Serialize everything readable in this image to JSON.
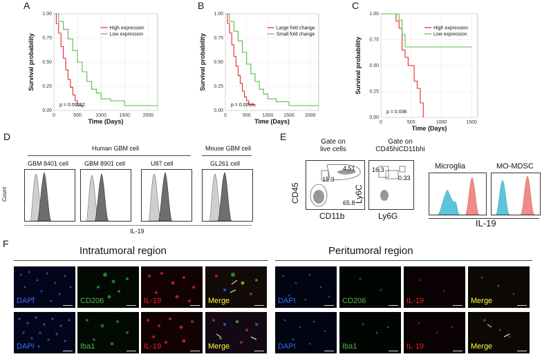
{
  "panels": {
    "A": {
      "letter": "A",
      "ylabel": "Survival probability",
      "xlabel": "Time (Days)",
      "pvalue": "p = 0.00062",
      "legend": [
        "High expression",
        "Low expression"
      ],
      "yticks": [
        "0.00",
        "0.25",
        "0.50",
        "0.75",
        "1.00"
      ],
      "xticks": [
        "0",
        "500",
        "1000",
        "1500",
        "2000"
      ]
    },
    "B": {
      "letter": "B",
      "ylabel": "Survival probability",
      "xlabel": "Time (Days)",
      "pvalue": "p = 0.0018",
      "legend": [
        "Large fold change",
        "Small fold change"
      ],
      "yticks": [
        "0.00",
        "0.25",
        "0.50",
        "0.75",
        "1.00"
      ],
      "xticks": [
        "0",
        "500",
        "1000",
        "1500",
        "2000"
      ]
    },
    "C": {
      "letter": "C",
      "ylabel": "Survival probability",
      "xlabel": "Time (Days)",
      "pvalue": "p = 0.036",
      "legend": [
        "High expression",
        "Low expression"
      ],
      "yticks": [
        "0.00",
        "0.25",
        "0.50",
        "0.75",
        "1.00"
      ],
      "xticks": [
        "0",
        "500",
        "1000",
        "1500"
      ]
    },
    "D": {
      "letter": "D",
      "group_human": "Human GBM cell",
      "group_mouse": "Mouse GBM cell",
      "cells": [
        "GBM 8401 cell",
        "GBM 8901 cell",
        "U87 cell",
        "GL261 cell"
      ],
      "ylabel": "Count",
      "xlabel": "IL-19"
    },
    "E": {
      "letter": "E",
      "gate1_line1": "Gate on",
      "gate1_line2": "live cells",
      "gate2_line1": "Gate on",
      "gate2_line2": "CD45hiCD11bhi",
      "plot1": {
        "ylabel": "CD45",
        "xlabel": "CD11b",
        "values": [
          "15.3",
          "4.51",
          "65.8"
        ]
      },
      "plot2": {
        "ylabel": "Ly6C",
        "xlabel": "Ly6G",
        "values": [
          "16.3",
          "0.33"
        ]
      },
      "hist_titles": [
        "Microglia",
        "MO-MDSC"
      ],
      "hist_xlabel": "IL-19"
    },
    "F": {
      "letter": "F",
      "intra_title": "Intratumoral region",
      "peri_title": "Peritumoral region",
      "row1": [
        "DAPI",
        "CD206",
        "IL-19",
        "Merge"
      ],
      "row2": [
        "DAPI",
        "Iba1",
        "IL-19",
        "Merge"
      ]
    }
  },
  "colors": {
    "red": "#e8242b",
    "green": "#56b847",
    "blue": "#5bc5da",
    "salmon": "#ef8b86",
    "dapi": "#3b6cff",
    "merge": "#ffff33"
  },
  "chart_data": [
    {
      "type": "line",
      "panel": "A",
      "xlabel": "Time (Days)",
      "ylabel": "Survival probability",
      "xlim": [
        0,
        2200
      ],
      "ylim": [
        0,
        1
      ],
      "series": [
        {
          "name": "High expression",
          "x": [
            0,
            50,
            100,
            150,
            200,
            250,
            300,
            350,
            400,
            450,
            500,
            600
          ],
          "y": [
            1.0,
            0.9,
            0.8,
            0.66,
            0.54,
            0.42,
            0.32,
            0.24,
            0.16,
            0.1,
            0.05,
            0.03
          ]
        },
        {
          "name": "Low expression",
          "x": [
            0,
            100,
            200,
            300,
            400,
            500,
            600,
            700,
            800,
            900,
            1000,
            1200,
            1500,
            2200
          ],
          "y": [
            1.0,
            0.92,
            0.84,
            0.74,
            0.62,
            0.5,
            0.4,
            0.3,
            0.22,
            0.18,
            0.12,
            0.1,
            0.05,
            0.05
          ]
        }
      ]
    },
    {
      "type": "line",
      "panel": "B",
      "xlabel": "Time (Days)",
      "ylabel": "Survival probability",
      "xlim": [
        0,
        2200
      ],
      "ylim": [
        0,
        1
      ],
      "series": [
        {
          "name": "Large fold change",
          "x": [
            0,
            50,
            100,
            150,
            200,
            250,
            300,
            350,
            400,
            450,
            500,
            550,
            700
          ],
          "y": [
            1.0,
            0.9,
            0.8,
            0.68,
            0.56,
            0.46,
            0.36,
            0.28,
            0.2,
            0.14,
            0.1,
            0.06,
            0.04
          ]
        },
        {
          "name": "Small fold change",
          "x": [
            0,
            100,
            200,
            300,
            400,
            500,
            600,
            700,
            800,
            900,
            1000,
            1200,
            1500,
            2200
          ],
          "y": [
            1.0,
            0.92,
            0.82,
            0.72,
            0.6,
            0.48,
            0.38,
            0.3,
            0.22,
            0.17,
            0.12,
            0.09,
            0.05,
            0.05
          ]
        }
      ]
    },
    {
      "type": "line",
      "panel": "C",
      "xlabel": "Time (Days)",
      "ylabel": "Survival probability",
      "xlim": [
        0,
        1600
      ],
      "ylim": [
        0,
        1
      ],
      "series": [
        {
          "name": "High expression",
          "x": [
            0,
            200,
            250,
            300,
            350,
            400,
            450,
            500,
            550,
            600,
            650,
            700
          ],
          "y": [
            1.0,
            1.0,
            0.93,
            0.86,
            0.65,
            0.58,
            0.5,
            0.5,
            0.35,
            0.28,
            0.14,
            0.0
          ]
        },
        {
          "name": "Low expression",
          "x": [
            0,
            250,
            300,
            350,
            400,
            1500
          ],
          "y": [
            1.0,
            1.0,
            0.94,
            0.8,
            0.68,
            0.68
          ]
        }
      ]
    }
  ]
}
